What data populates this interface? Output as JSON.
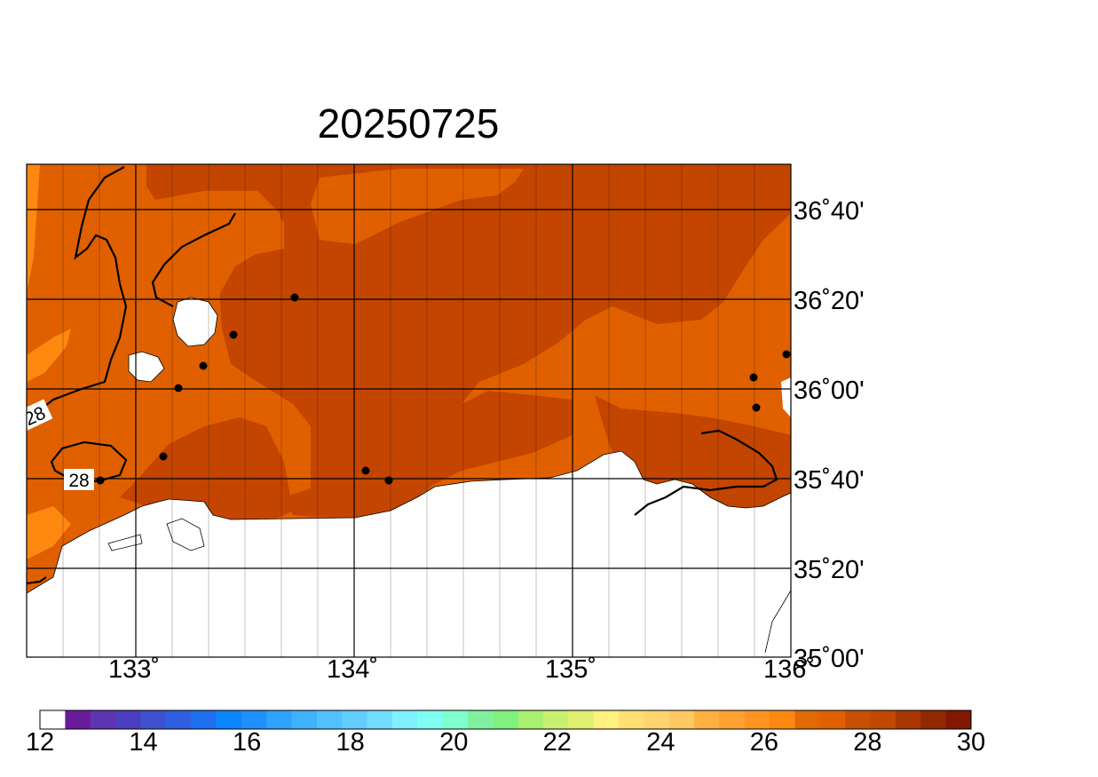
{
  "title": "20250725",
  "lat_labels": [
    "36˚40'",
    "36˚20'",
    "36˚00'",
    "35˚40'",
    "35˚20'",
    "35˚00'"
  ],
  "lon_labels": [
    "133˚",
    "134˚",
    "135˚",
    "136˚"
  ],
  "contour_labels": [
    "28",
    "28"
  ],
  "colorbar": {
    "labels": [
      "12",
      "14",
      "16",
      "18",
      "20",
      "22",
      "24",
      "26",
      "28",
      "30"
    ],
    "colors": [
      "#ffffff",
      "#6a1b9a",
      "#5e35b1",
      "#4a3fc0",
      "#3f51d0",
      "#2f5fe0",
      "#1e6ff0",
      "#0a84ff",
      "#1e90ff",
      "#2ea2ff",
      "#3fb2ff",
      "#50c0ff",
      "#62ccff",
      "#70dcff",
      "#7ff0ff",
      "#7ffff0",
      "#7fffcf",
      "#80f0a0",
      "#80f080",
      "#a8f070",
      "#c8f070",
      "#e0f070",
      "#fff080",
      "#ffe070",
      "#ffd470",
      "#ffc860",
      "#ffb040",
      "#ffa030",
      "#ff9420",
      "#ff8810",
      "#e06a00",
      "#e06000",
      "#c85000",
      "#c04800",
      "#a83800",
      "#902800",
      "#801800"
    ]
  },
  "map_colors": {
    "level_27_5": "#e06000",
    "level_28": "#c44500",
    "level_27": "#ff8810",
    "land": "#ffffff"
  }
}
